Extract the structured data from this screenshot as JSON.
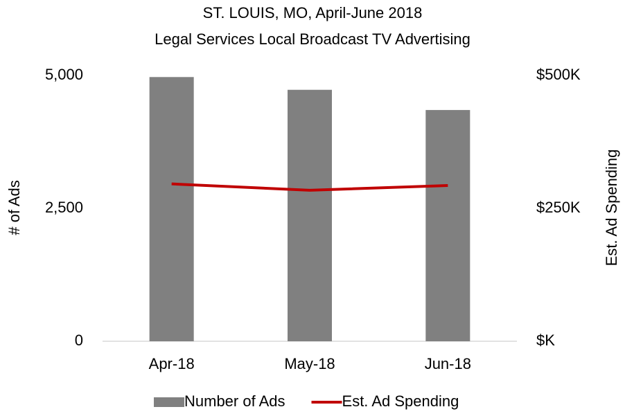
{
  "chart_data": {
    "type": "bar",
    "title": "ST. LOUIS, MO, April-June 2018",
    "subtitle": "Legal Services Local Broadcast TV Advertising",
    "y_label": "# of Ads",
    "y2_label": "Est. Ad Spending",
    "categories": [
      "Apr-18",
      "May-18",
      "Jun-18"
    ],
    "series": [
      {
        "name": "Number of Ads",
        "type": "bar",
        "color": "#808080",
        "values": [
          4970,
          4730,
          4350
        ]
      },
      {
        "name": "Est. Ad Spending",
        "type": "line",
        "axis": "y2",
        "color": "#c00000",
        "values": [
          296000,
          284000,
          293000
        ]
      }
    ],
    "ylim": [
      0,
      5000
    ],
    "yticks": [
      0,
      {
        "value": 2500,
        "label": "2,500"
      },
      {
        "value": 5000,
        "label": "5,000"
      }
    ],
    "y2lim": [
      0,
      500000
    ],
    "y2ticks": [
      {
        "value": 0,
        "label": "$K"
      },
      {
        "value": 250000,
        "label": "$250K"
      },
      {
        "value": 500000,
        "label": "$500K"
      }
    ],
    "grid": false,
    "legend": "bottom"
  }
}
